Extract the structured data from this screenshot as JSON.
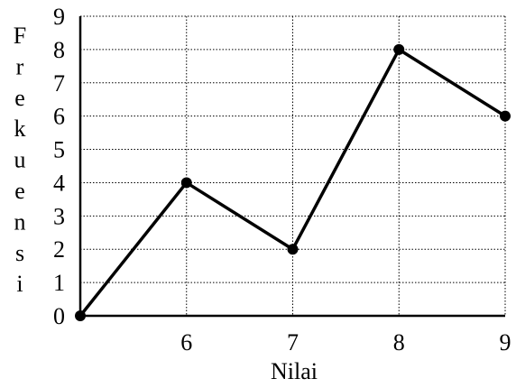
{
  "chart_data": {
    "type": "line",
    "title": "",
    "xlabel": "Nilai",
    "ylabel": "Frekuensi",
    "x": [
      5,
      6,
      7,
      8,
      9
    ],
    "x_tick_labels": [
      "6",
      "7",
      "8",
      "9"
    ],
    "x_tick_values": [
      6,
      7,
      8,
      9
    ],
    "y_tick_labels": [
      "0",
      "1",
      "2",
      "3",
      "4",
      "5",
      "6",
      "7",
      "8",
      "9"
    ],
    "y_tick_values": [
      0,
      1,
      2,
      3,
      4,
      5,
      6,
      7,
      8,
      9
    ],
    "series": [
      {
        "values": [
          0,
          4,
          2,
          8,
          6
        ]
      }
    ],
    "xlim": [
      5,
      9
    ],
    "ylim": [
      0,
      9
    ],
    "grid": true,
    "grid_style": "dotted",
    "line_color": "#000000",
    "marker_color": "#000000",
    "grid_color": "#000000"
  }
}
